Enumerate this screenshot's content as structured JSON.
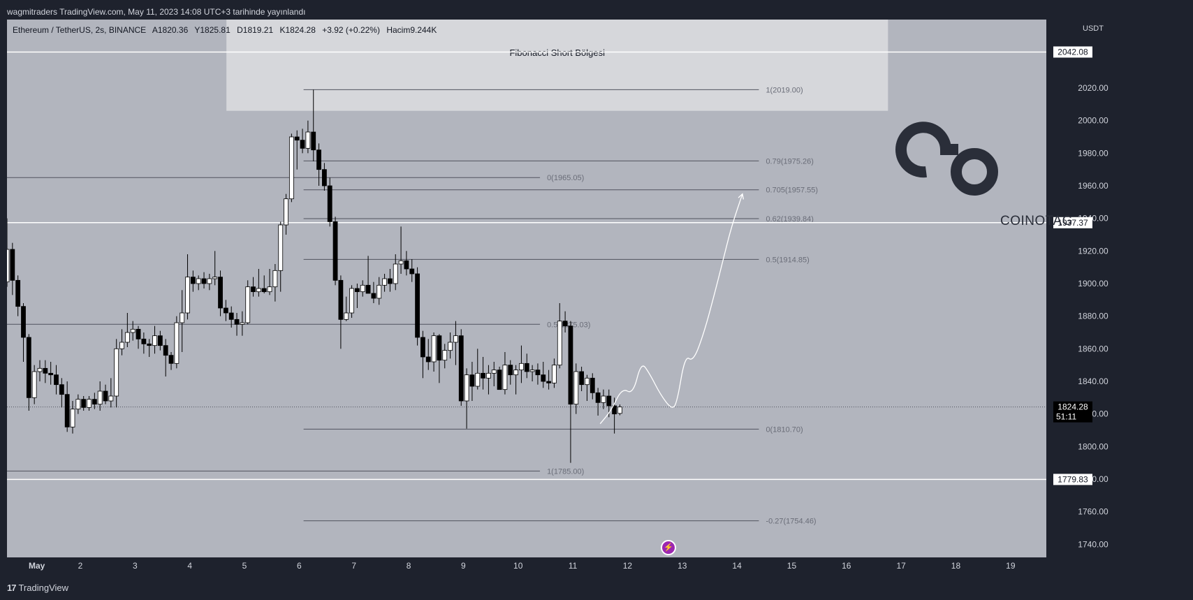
{
  "header": {
    "published_text": "wagmitraders TradingView.com, May 11, 2023 14:08 UTC+3 tarihinde yayınlandı"
  },
  "legend": {
    "symbol": "Ethereum / TetherUS, 2s, BINANCE",
    "open": "A1820.36",
    "high": "Y1825.81",
    "low": "D1819.21",
    "close": "K1824.28",
    "change": "+3.92 (+0.22%)",
    "volume": "Hacim9.244K"
  },
  "footer": {
    "brand": "TradingView"
  },
  "watermark": {
    "text": "COINOTAG"
  },
  "colors": {
    "chart_bg": "#b2b5be",
    "bull_candle": "#ffffff",
    "bear_candle": "#000000",
    "zone_fill": "#dcdde0",
    "price_tag_bg": "#ffffff",
    "current_price_bg": "#000000"
  },
  "chart_data": {
    "type": "candlestick",
    "currency_label": "USDT",
    "ylim": [
      1732,
      2062
    ],
    "y_ticks": [
      1740,
      1760,
      1780,
      1800,
      1820,
      1840,
      1860,
      1880,
      1900,
      1920,
      1940,
      1960,
      1980,
      2000,
      2020
    ],
    "x_ticks": [
      "May",
      "2",
      "3",
      "4",
      "5",
      "6",
      "7",
      "8",
      "9",
      "10",
      "11",
      "12",
      "13",
      "14",
      "15",
      "16",
      "17",
      "18",
      "19"
    ],
    "x_tick_days": [
      1,
      2,
      3,
      4,
      5,
      6,
      7,
      8,
      9,
      10,
      11,
      12,
      13,
      14,
      15,
      16,
      17,
      18,
      19
    ],
    "xlim_days": [
      0.66,
      19.5
    ],
    "current_price": {
      "value": 1824.28,
      "countdown": "51:11"
    },
    "horizontal_levels": [
      {
        "price": 2042.08,
        "label": "2042.08"
      },
      {
        "price": 1937.37,
        "label": "1937.37"
      },
      {
        "price": 1779.83,
        "label": "1779.83"
      }
    ],
    "zone": {
      "label": "Fibonacci Short Bölgesi",
      "top": 2062,
      "bottom": 2006,
      "start_day": 4.67,
      "end_day": 16.76
    },
    "fib_large": {
      "start_day": 6.08,
      "end_day": 14.4,
      "levels": [
        {
          "price": 2019.0,
          "label": "1(2019.00)"
        },
        {
          "price": 1975.26,
          "label": "0.79(1975.26)"
        },
        {
          "price": 1957.55,
          "label": "0.705(1957.55)"
        },
        {
          "price": 1939.84,
          "label": "0.62(1939.84)"
        },
        {
          "price": 1914.85,
          "label": "0.5(1914.85)"
        },
        {
          "price": 1810.7,
          "label": "0(1810.70)"
        },
        {
          "price": 1754.46,
          "label": "-0.27(1754.46)"
        }
      ]
    },
    "fib_small": {
      "start_day": 0.66,
      "end_day": 10.4,
      "levels": [
        {
          "price": 1965.05,
          "label": "0(1965.05)"
        },
        {
          "price": 1875.03,
          "label": "0.5(1875.03)"
        },
        {
          "price": 1785.0,
          "label": "1(1785.00)"
        }
      ]
    },
    "projection_path": [
      [
        11.5,
        1814
      ],
      [
        11.7,
        1822
      ],
      [
        11.9,
        1836
      ],
      [
        12.1,
        1832
      ],
      [
        12.25,
        1852
      ],
      [
        12.4,
        1845
      ],
      [
        12.6,
        1832
      ],
      [
        12.8,
        1823
      ],
      [
        12.9,
        1826
      ],
      [
        13.05,
        1856
      ],
      [
        13.2,
        1852
      ],
      [
        13.4,
        1870
      ],
      [
        13.6,
        1895
      ],
      [
        13.75,
        1915
      ],
      [
        13.9,
        1935
      ],
      [
        14.1,
        1955
      ]
    ],
    "candles": [
      [
        0.66,
        1901,
        1940,
        1898,
        1921
      ],
      [
        0.76,
        1921,
        1925,
        1893,
        1902
      ],
      [
        0.86,
        1902,
        1905,
        1880,
        1886
      ],
      [
        0.96,
        1886,
        1888,
        1852,
        1867
      ],
      [
        1.06,
        1867,
        1869,
        1822,
        1830
      ],
      [
        1.16,
        1830,
        1850,
        1826,
        1846
      ],
      [
        1.26,
        1846,
        1853,
        1840,
        1848
      ],
      [
        1.36,
        1848,
        1853,
        1839,
        1845
      ],
      [
        1.46,
        1845,
        1852,
        1838,
        1844
      ],
      [
        1.56,
        1844,
        1850,
        1832,
        1838
      ],
      [
        1.66,
        1838,
        1842,
        1824,
        1832
      ],
      [
        1.76,
        1832,
        1840,
        1809,
        1812
      ],
      [
        1.86,
        1812,
        1828,
        1808,
        1823
      ],
      [
        1.96,
        1823,
        1832,
        1820,
        1829
      ],
      [
        2.06,
        1829,
        1831,
        1822,
        1824
      ],
      [
        2.16,
        1824,
        1831,
        1822,
        1829
      ],
      [
        2.26,
        1829,
        1833,
        1823,
        1826
      ],
      [
        2.36,
        1826,
        1840,
        1822,
        1834
      ],
      [
        2.46,
        1834,
        1838,
        1826,
        1828
      ],
      [
        2.56,
        1828,
        1842,
        1824,
        1831
      ],
      [
        2.66,
        1831,
        1866,
        1824,
        1860
      ],
      [
        2.76,
        1860,
        1872,
        1856,
        1864
      ],
      [
        2.86,
        1864,
        1882,
        1861,
        1870
      ],
      [
        2.96,
        1870,
        1877,
        1865,
        1872
      ],
      [
        3.06,
        1872,
        1874,
        1860,
        1866
      ],
      [
        3.16,
        1866,
        1870,
        1857,
        1863
      ],
      [
        3.26,
        1863,
        1866,
        1855,
        1862
      ],
      [
        3.36,
        1862,
        1874,
        1857,
        1868
      ],
      [
        3.46,
        1868,
        1871,
        1859,
        1862
      ],
      [
        3.56,
        1862,
        1866,
        1843,
        1856
      ],
      [
        3.66,
        1856,
        1858,
        1847,
        1851
      ],
      [
        3.76,
        1851,
        1880,
        1848,
        1876
      ],
      [
        3.86,
        1876,
        1896,
        1858,
        1882
      ],
      [
        3.96,
        1882,
        1918,
        1878,
        1904
      ],
      [
        4.06,
        1904,
        1908,
        1895,
        1900
      ],
      [
        4.16,
        1900,
        1905,
        1896,
        1903
      ],
      [
        4.26,
        1903,
        1907,
        1897,
        1900
      ],
      [
        4.36,
        1900,
        1906,
        1896,
        1903
      ],
      [
        4.46,
        1903,
        1920,
        1899,
        1904
      ],
      [
        4.56,
        1904,
        1908,
        1880,
        1885
      ],
      [
        4.66,
        1885,
        1890,
        1877,
        1882
      ],
      [
        4.76,
        1882,
        1886,
        1873,
        1878
      ],
      [
        4.86,
        1878,
        1882,
        1868,
        1875
      ],
      [
        4.96,
        1875,
        1883,
        1868,
        1876
      ],
      [
        5.06,
        1876,
        1902,
        1875,
        1898
      ],
      [
        5.16,
        1898,
        1904,
        1892,
        1895
      ],
      [
        5.26,
        1895,
        1909,
        1892,
        1897
      ],
      [
        5.36,
        1897,
        1905,
        1894,
        1895
      ],
      [
        5.46,
        1895,
        1909,
        1893,
        1898
      ],
      [
        5.56,
        1898,
        1912,
        1889,
        1908
      ],
      [
        5.66,
        1908,
        1938,
        1895,
        1936
      ],
      [
        5.76,
        1936,
        1955,
        1930,
        1952
      ],
      [
        5.86,
        1952,
        1992,
        1950,
        1990
      ],
      [
        5.96,
        1990,
        1994,
        1970,
        1988
      ],
      [
        6.06,
        1988,
        1995,
        1980,
        1983
      ],
      [
        6.16,
        1983,
        2000,
        1980,
        1993
      ],
      [
        6.26,
        1993,
        2019,
        1975,
        1982
      ],
      [
        6.36,
        1982,
        1986,
        1960,
        1970
      ],
      [
        6.46,
        1970,
        1974,
        1957,
        1960
      ],
      [
        6.56,
        1960,
        1965,
        1935,
        1938
      ],
      [
        6.66,
        1938,
        1941,
        1899,
        1902
      ],
      [
        6.76,
        1902,
        1905,
        1860,
        1878
      ],
      [
        6.86,
        1878,
        1892,
        1877,
        1882
      ],
      [
        6.96,
        1882,
        1899,
        1879,
        1897
      ],
      [
        7.06,
        1897,
        1900,
        1885,
        1895
      ],
      [
        7.16,
        1895,
        1902,
        1892,
        1899
      ],
      [
        7.26,
        1899,
        1917,
        1895,
        1894
      ],
      [
        7.36,
        1894,
        1901,
        1888,
        1891
      ],
      [
        7.46,
        1891,
        1904,
        1887,
        1899
      ],
      [
        7.56,
        1899,
        1906,
        1895,
        1903
      ],
      [
        7.66,
        1903,
        1909,
        1895,
        1900
      ],
      [
        7.76,
        1900,
        1918,
        1896,
        1912
      ],
      [
        7.86,
        1912,
        1935,
        1906,
        1914
      ],
      [
        7.96,
        1914,
        1920,
        1905,
        1909
      ],
      [
        8.06,
        1909,
        1915,
        1901,
        1906
      ],
      [
        8.16,
        1906,
        1910,
        1862,
        1867
      ],
      [
        8.26,
        1867,
        1871,
        1842,
        1855
      ],
      [
        8.36,
        1855,
        1866,
        1847,
        1852
      ],
      [
        8.46,
        1852,
        1870,
        1846,
        1868
      ],
      [
        8.56,
        1868,
        1869,
        1839,
        1853
      ],
      [
        8.66,
        1853,
        1863,
        1848,
        1859
      ],
      [
        8.76,
        1859,
        1870,
        1854,
        1864
      ],
      [
        8.86,
        1864,
        1877,
        1850,
        1868
      ],
      [
        8.96,
        1868,
        1872,
        1825,
        1828
      ],
      [
        9.06,
        1828,
        1848,
        1811,
        1844
      ],
      [
        9.16,
        1844,
        1852,
        1828,
        1837
      ],
      [
        9.26,
        1837,
        1860,
        1835,
        1845
      ],
      [
        9.36,
        1845,
        1855,
        1835,
        1842
      ],
      [
        9.46,
        1842,
        1850,
        1832,
        1845
      ],
      [
        9.56,
        1845,
        1852,
        1837,
        1847
      ],
      [
        9.66,
        1847,
        1849,
        1838,
        1835
      ],
      [
        9.76,
        1835,
        1858,
        1832,
        1850
      ],
      [
        9.86,
        1850,
        1853,
        1838,
        1844
      ],
      [
        9.96,
        1844,
        1850,
        1832,
        1847
      ],
      [
        10.06,
        1847,
        1862,
        1839,
        1851
      ],
      [
        10.16,
        1851,
        1857,
        1842,
        1846
      ],
      [
        10.26,
        1846,
        1850,
        1840,
        1847
      ],
      [
        10.36,
        1847,
        1851,
        1838,
        1844
      ],
      [
        10.46,
        1844,
        1852,
        1836,
        1840
      ],
      [
        10.56,
        1840,
        1847,
        1835,
        1839
      ],
      [
        10.66,
        1839,
        1854,
        1836,
        1850
      ],
      [
        10.76,
        1850,
        1888,
        1848,
        1877
      ],
      [
        10.86,
        1877,
        1883,
        1870,
        1874
      ],
      [
        10.96,
        1874,
        1877,
        1790,
        1826
      ],
      [
        11.06,
        1826,
        1851,
        1820,
        1846
      ],
      [
        11.16,
        1846,
        1849,
        1834,
        1838
      ],
      [
        11.26,
        1838,
        1844,
        1828,
        1842
      ],
      [
        11.36,
        1842,
        1845,
        1829,
        1833
      ],
      [
        11.46,
        1833,
        1836,
        1819,
        1827
      ],
      [
        11.56,
        1827,
        1835,
        1823,
        1831
      ],
      [
        11.66,
        1831,
        1835,
        1818,
        1825
      ],
      [
        11.76,
        1825,
        1830,
        1808,
        1820
      ],
      [
        11.86,
        1820.36,
        1825.81,
        1819.21,
        1824.28
      ]
    ]
  }
}
